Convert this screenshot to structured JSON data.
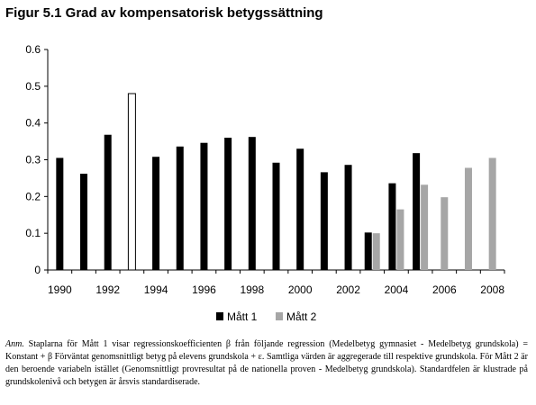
{
  "chart_data": {
    "type": "bar",
    "title": "Figur 5.1 Grad av kompensatorisk betygssättning",
    "categories": [
      "1990",
      "1991",
      "1992",
      "1993",
      "1994",
      "1995",
      "1996",
      "1997",
      "1998",
      "1999",
      "2000",
      "2001",
      "2002",
      "2003",
      "2004",
      "2005",
      "2006",
      "2007",
      "2008"
    ],
    "x_tick_labels": [
      "1990",
      "1992",
      "1994",
      "1996",
      "1998",
      "2000",
      "2002",
      "2004",
      "2006",
      "2008"
    ],
    "ylim": [
      0,
      0.6
    ],
    "y_ticks": [
      "0",
      "0.1",
      "0.2",
      "0.3",
      "0.4",
      "0.5",
      "0.6"
    ],
    "y_tick_values": [
      0,
      0.1,
      0.2,
      0.3,
      0.4,
      0.5,
      0.6
    ],
    "series": [
      {
        "name": "Mått 1",
        "color": "#000000",
        "values": [
          0.305,
          0.262,
          0.368,
          0.48,
          0.308,
          0.336,
          0.346,
          0.36,
          0.362,
          0.292,
          0.33,
          0.266,
          0.286,
          0.102,
          0.236,
          0.318,
          null,
          null,
          null
        ],
        "highlight": {
          "index": 3,
          "fill": "#ffffff",
          "stroke": "#000000"
        }
      },
      {
        "name": "Mått 2",
        "color": "#a6a6a6",
        "values": [
          null,
          null,
          null,
          null,
          null,
          null,
          null,
          null,
          null,
          null,
          null,
          null,
          null,
          0.1,
          0.165,
          0.232,
          0.198,
          0.278,
          0.305
        ]
      }
    ],
    "grid": false,
    "legend": "bottom-center"
  },
  "note": {
    "prefix": "Anm.",
    "text": "Staplarna för Mått 1 visar regressionskoefficienten β från följande regression (Medelbetyg gymnasiet - Medelbetyg grundskola) = Konstant + β Förväntat genomsnittligt betyg på elevens grundskola + ε. Samtliga värden är aggregerade till respektive grundskola. För Mått 2 är den beroende variabeln istället (Genomsnittligt provresultat på de nationella proven - Medelbetyg grundskola). Standardfelen är klustrade på grundskolenivå och betygen är årsvis standardiserade."
  }
}
